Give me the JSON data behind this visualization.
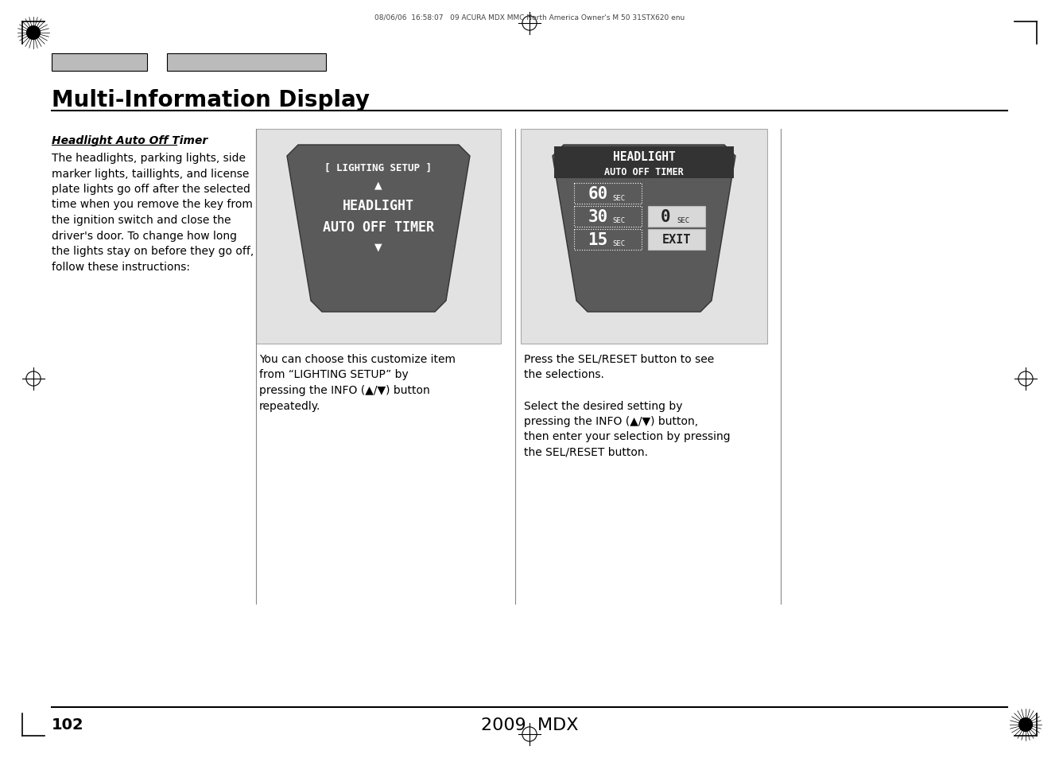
{
  "page_bg": "#ffffff",
  "page_width": 13.32,
  "page_height": 9.54,
  "header_text": "08/06/06  16:58:07   09 ACURA MDX MMC North America Owner's M 50 31STX620 enu",
  "title": "Multi-Information Display",
  "section_title": "Headlight Auto Off Timer",
  "body_text": "The headlights, parking lights, side\nmarker lights, taillights, and license\nplate lights go off after the selected\ntime when you remove the key from\nthe ignition switch and close the\ndriver's door. To change how long\nthe lights stay on before they go off,\nfollow these instructions:",
  "caption1": "You can choose this customize item\nfrom “LIGHTING SETUP” by\npressing the INFO (▲/▼) button\nrepeatedly.",
  "caption2": "Press the SEL/RESET button to see\nthe selections.\n\nSelect the desired setting by\npressing the INFO (▲/▼) button,\nthen enter your selection by pressing\nthe SEL/RESET button.",
  "page_number": "102",
  "model": "2009  MDX",
  "screen1_bg": "#5a5a5a",
  "screen2_bg": "#5a5a5a",
  "screen_light_bg": "#e0e0e0",
  "screen1_line1": "[ LIGHTING SETUP ]",
  "screen1_line2": "▲",
  "screen1_line3": "HEADLIGHT",
  "screen1_line4": "AUTO OFF TIMER",
  "screen1_line5": "▼",
  "screen2_title1": "HEADLIGHT",
  "screen2_title2": "AUTO OFF TIMER",
  "screen2_items_left": [
    [
      "60",
      "SEC"
    ],
    [
      "30",
      "SEC"
    ],
    [
      "15",
      "SEC"
    ]
  ],
  "screen2_items_right_top": [
    "0",
    "SEC"
  ],
  "screen2_items_right_bot": "EXIT",
  "white": "#ffffff",
  "black": "#000000",
  "dark_gray": "#555555",
  "mid_gray": "#5a5a5a",
  "header_dark": "#333333",
  "light_gray": "#e2e2e2",
  "panel_border": "#aaaaaa"
}
